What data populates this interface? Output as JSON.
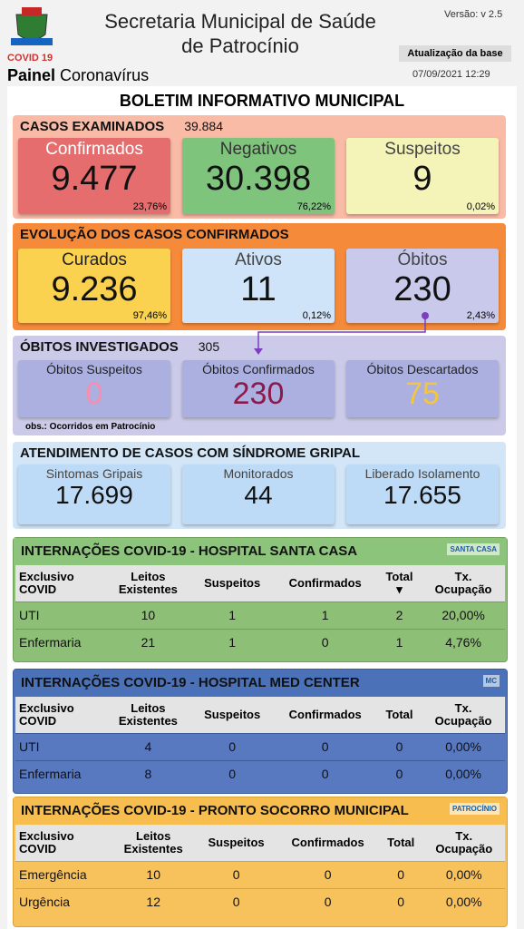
{
  "header": {
    "logo_label": "COVID 19",
    "brand_bold": "Painel",
    "brand_rest": "Coronavírus",
    "title": "Secretaria Municipal de Saúde de Patrocínio",
    "version": "Versão: v 2.5",
    "update_button": "Atualização da base",
    "updated": "07/09/2021 12:29"
  },
  "bulletin_title": "BOLETIM INFORMATIVO MUNICIPAL",
  "examined": {
    "title": "CASOS EXAMINADOS",
    "total": "39.884",
    "cards": [
      {
        "label": "Confirmados",
        "value": "9.477",
        "pct": "23,76%"
      },
      {
        "label": "Negativos",
        "value": "30.398",
        "pct": "76,22%"
      },
      {
        "label": "Suspeitos",
        "value": "9",
        "pct": "0,02%"
      }
    ]
  },
  "evolution": {
    "title": "EVOLUÇÃO DOS CASOS CONFIRMADOS",
    "cards": [
      {
        "label": "Curados",
        "value": "9.236",
        "pct": "97,46%"
      },
      {
        "label": "Ativos",
        "value": "11",
        "pct": "0,12%"
      },
      {
        "label": "Óbitos",
        "value": "230",
        "pct": "2,43%"
      }
    ]
  },
  "deaths": {
    "title": "ÓBITOS INVESTIGADOS",
    "total": "305",
    "cards": [
      {
        "label": "Óbitos Suspeitos",
        "value": "0"
      },
      {
        "label": "Óbitos Confirmados",
        "value": "230"
      },
      {
        "label": "Óbitos Descartados",
        "value": "75"
      }
    ],
    "note": "obs.: Ocorridos em Patrocínio"
  },
  "flu": {
    "title": "ATENDIMENTO DE CASOS COM SÍNDROME GRIPAL",
    "cards": [
      {
        "label": "Sintomas Gripais",
        "value": "17.699"
      },
      {
        "label": "Monitorados",
        "value": "44"
      },
      {
        "label": "Liberado Isolamento",
        "value": "17.655"
      }
    ]
  },
  "hospitals": [
    {
      "title": "INTERNAÇÕES COVID-19 - HOSPITAL SANTA CASA",
      "logo_text": "SANTA CASA",
      "header": [
        "Exclusivo\nCOVID",
        "Leitos\nExistentes",
        "Suspeitos",
        "Confirmados",
        "Total\n▾",
        "Tx.\nOcupação"
      ],
      "rows": [
        [
          "UTI",
          "10",
          "1",
          "1",
          "2",
          "20,00%"
        ],
        [
          "Enfermaria",
          "21",
          "1",
          "0",
          "1",
          "4,76%"
        ]
      ]
    },
    {
      "title": "INTERNAÇÕES COVID-19 - HOSPITAL MED CENTER",
      "logo_text": "MC",
      "header": [
        "Exclusivo\nCOVID",
        "Leitos\nExistentes",
        "Suspeitos",
        "Confirmados",
        "Total",
        "Tx.\nOcupação"
      ],
      "rows": [
        [
          "UTI",
          "4",
          "0",
          "0",
          "0",
          "0,00%"
        ],
        [
          "Enfermaria",
          "8",
          "0",
          "0",
          "0",
          "0,00%"
        ]
      ]
    },
    {
      "title": "INTERNAÇÕES COVID-19 - PRONTO SOCORRO MUNICIPAL",
      "logo_text": "PATROCÍNIO",
      "header": [
        "Exclusivo\nCOVID",
        "Leitos\nExistentes",
        "Suspeitos",
        "Confirmados",
        "Total",
        "Tx.\nOcupação"
      ],
      "rows": [
        [
          "Emergência",
          "10",
          "0",
          "0",
          "0",
          "0,00%"
        ],
        [
          "Urgência",
          "12",
          "0",
          "0",
          "0",
          "0,00%"
        ]
      ]
    }
  ]
}
